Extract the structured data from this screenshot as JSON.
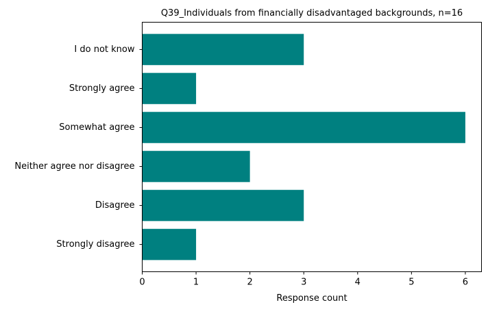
{
  "chart_data": {
    "type": "bar",
    "orientation": "horizontal",
    "title": "Q39_Individuals from financially disadvantaged backgrounds, n=16",
    "xlabel": "Response count",
    "ylabel": "",
    "categories": [
      "Strongly disagree",
      "Disagree",
      "Neither agree nor disagree",
      "Somewhat agree",
      "Strongly agree",
      "I do not know"
    ],
    "values": [
      1,
      3,
      2,
      6,
      1,
      3
    ],
    "xlim": [
      0,
      6.3
    ],
    "xticks": [
      0,
      1,
      2,
      3,
      4,
      5,
      6
    ],
    "grid": false,
    "bar_color": "#008080"
  }
}
